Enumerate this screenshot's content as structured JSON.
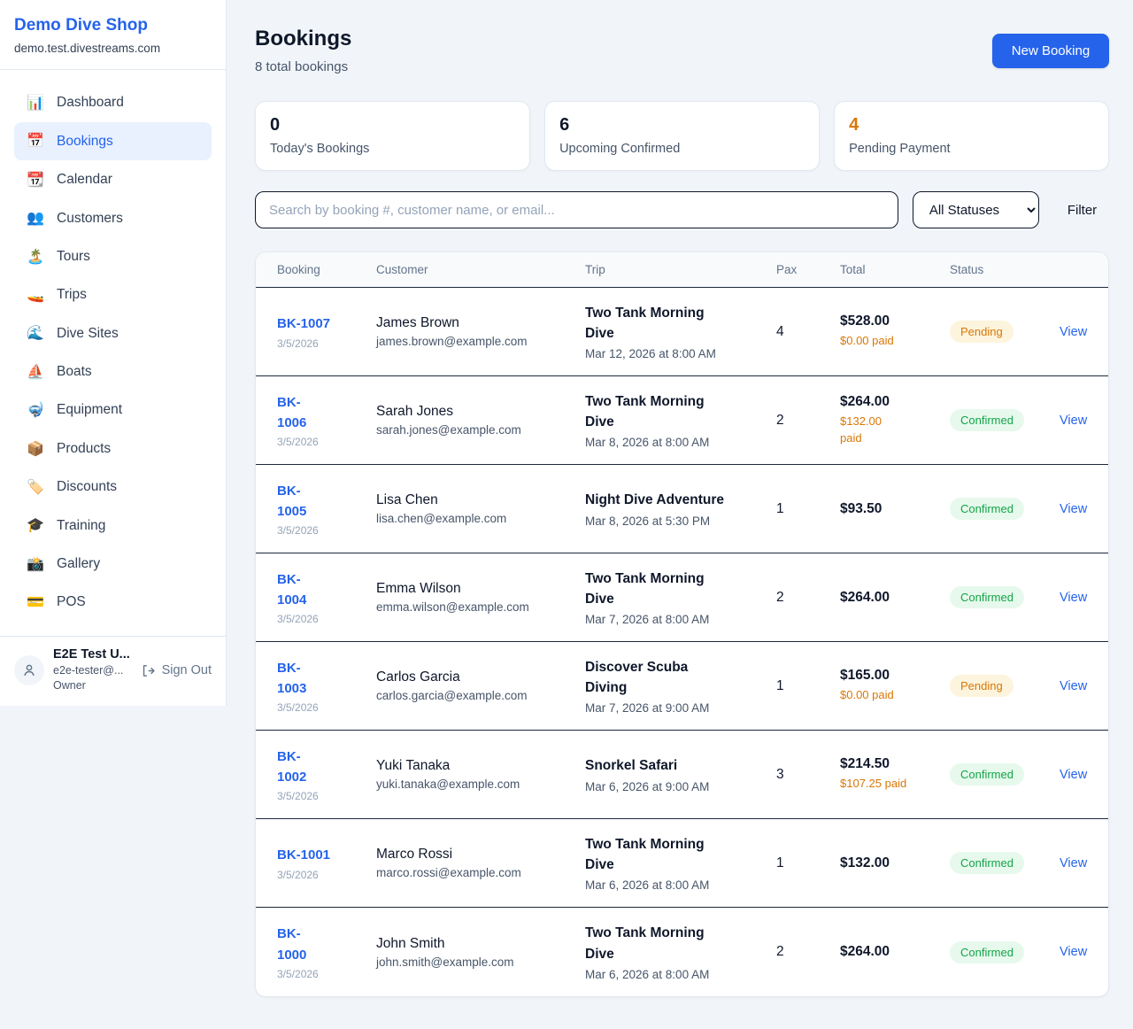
{
  "colors": {
    "accent": "#2563eb",
    "orange": "#d97706",
    "green": "#16a34a",
    "page_bg": "#f1f5f9"
  },
  "sidebar": {
    "title": "Demo Dive Shop",
    "domain": "demo.test.divestreams.com",
    "items": [
      {
        "icon": "📊",
        "icon_name": "bar-chart-icon",
        "label": "Dashboard",
        "active": false
      },
      {
        "icon": "📅",
        "icon_name": "calendar-icon",
        "label": "Bookings",
        "active": true
      },
      {
        "icon": "📆",
        "icon_name": "tear-calendar-icon",
        "label": "Calendar",
        "active": false
      },
      {
        "icon": "👥",
        "icon_name": "people-icon",
        "label": "Customers",
        "active": false
      },
      {
        "icon": "🏝️",
        "icon_name": "island-icon",
        "label": "Tours",
        "active": false
      },
      {
        "icon": "🚤",
        "icon_name": "speedboat-icon",
        "label": "Trips",
        "active": false
      },
      {
        "icon": "🌊",
        "icon_name": "wave-icon",
        "label": "Dive Sites",
        "active": false
      },
      {
        "icon": "⛵",
        "icon_name": "sailboat-icon",
        "label": "Boats",
        "active": false
      },
      {
        "icon": "🤿",
        "icon_name": "dive-mask-icon",
        "label": "Equipment",
        "active": false
      },
      {
        "icon": "📦",
        "icon_name": "package-icon",
        "label": "Products",
        "active": false
      },
      {
        "icon": "🏷️",
        "icon_name": "tag-icon",
        "label": "Discounts",
        "active": false
      },
      {
        "icon": "🎓",
        "icon_name": "grad-cap-icon",
        "label": "Training",
        "active": false
      },
      {
        "icon": "📸",
        "icon_name": "camera-icon",
        "label": "Gallery",
        "active": false
      },
      {
        "icon": "💳",
        "icon_name": "credit-card-icon",
        "label": "POS",
        "active": false
      }
    ],
    "user": {
      "name": "E2E Test U...",
      "email": "e2e-tester@...",
      "role": "Owner",
      "sign_out": "Sign Out"
    }
  },
  "header": {
    "title": "Bookings",
    "subtitle": "8 total bookings",
    "new_booking": "New Booking"
  },
  "stats": [
    {
      "value": "0",
      "label": "Today's Bookings",
      "accent": false
    },
    {
      "value": "6",
      "label": "Upcoming Confirmed",
      "accent": false
    },
    {
      "value": "4",
      "label": "Pending Payment",
      "accent": true
    }
  ],
  "filters": {
    "search_placeholder": "Search by booking #, customer name, or email...",
    "status_selected": "All Statuses",
    "filter_label": "Filter"
  },
  "table": {
    "columns": [
      "Booking",
      "Customer",
      "Trip",
      "Pax",
      "Total",
      "Status"
    ],
    "rows": [
      {
        "id": "BK-1007",
        "date": "3/5/2026",
        "customer": "James Brown",
        "email": "james.brown@example.com",
        "trip": "Two Tank Morning\nDive",
        "trip_time": "Mar 12, 2026 at 8:00 AM",
        "pax": "4",
        "total": "$528.00",
        "paid": "$0.00 paid",
        "status": "Pending",
        "action": "View"
      },
      {
        "id": "BK-\n1006",
        "date": "3/5/2026",
        "customer": "Sarah Jones",
        "email": "sarah.jones@example.com",
        "trip": "Two Tank Morning\nDive",
        "trip_time": "Mar 8, 2026 at 8:00 AM",
        "pax": "2",
        "total": "$264.00",
        "paid": "$132.00\npaid",
        "status": "Confirmed",
        "action": "View"
      },
      {
        "id": "BK-\n1005",
        "date": "3/5/2026",
        "customer": "Lisa Chen",
        "email": "lisa.chen@example.com",
        "trip": "Night Dive Adventure",
        "trip_time": "Mar 8, 2026 at 5:30 PM",
        "pax": "1",
        "total": "$93.50",
        "paid": "",
        "status": "Confirmed",
        "action": "View"
      },
      {
        "id": "BK-\n1004",
        "date": "3/5/2026",
        "customer": "Emma Wilson",
        "email": "emma.wilson@example.com",
        "trip": "Two Tank Morning\nDive",
        "trip_time": "Mar 7, 2026 at 8:00 AM",
        "pax": "2",
        "total": "$264.00",
        "paid": "",
        "status": "Confirmed",
        "action": "View"
      },
      {
        "id": "BK-\n1003",
        "date": "3/5/2026",
        "customer": "Carlos Garcia",
        "email": "carlos.garcia@example.com",
        "trip": "Discover Scuba\nDiving",
        "trip_time": "Mar 7, 2026 at 9:00 AM",
        "pax": "1",
        "total": "$165.00",
        "paid": "$0.00 paid",
        "status": "Pending",
        "action": "View"
      },
      {
        "id": "BK-\n1002",
        "date": "3/5/2026",
        "customer": "Yuki Tanaka",
        "email": "yuki.tanaka@example.com",
        "trip": "Snorkel Safari",
        "trip_time": "Mar 6, 2026 at 9:00 AM",
        "pax": "3",
        "total": "$214.50",
        "paid": "$107.25 paid",
        "status": "Confirmed",
        "action": "View"
      },
      {
        "id": "BK-1001",
        "date": "3/5/2026",
        "customer": "Marco Rossi",
        "email": "marco.rossi@example.com",
        "trip": "Two Tank Morning\nDive",
        "trip_time": "Mar 6, 2026 at 8:00 AM",
        "pax": "1",
        "total": "$132.00",
        "paid": "",
        "status": "Confirmed",
        "action": "View"
      },
      {
        "id": "BK-\n1000",
        "date": "3/5/2026",
        "customer": "John Smith",
        "email": "john.smith@example.com",
        "trip": "Two Tank Morning\nDive",
        "trip_time": "Mar 6, 2026 at 8:00 AM",
        "pax": "2",
        "total": "$264.00",
        "paid": "",
        "status": "Confirmed",
        "action": "View"
      }
    ]
  }
}
